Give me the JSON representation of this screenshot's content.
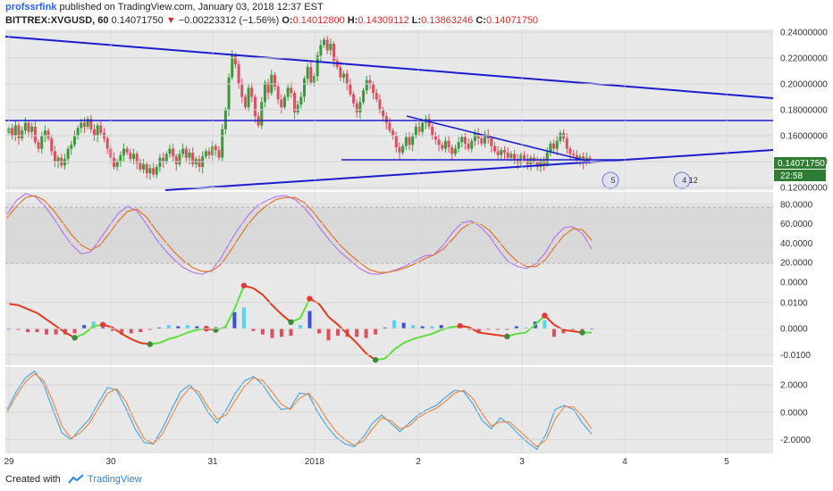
{
  "header": {
    "author": "profssrfink",
    "published_text": "published on TradingView.com, January 03, 2018 12:37 EST",
    "symbol": "BITTREX:XVGUSD, 60",
    "last": "0.14071750",
    "change_arrow": "▼",
    "change": "−0.00223312 (−1.56%)",
    "o_label": "O:",
    "o": "0.14012800",
    "h_label": "H:",
    "h": "0.14309112",
    "l_label": "L:",
    "l": "0.13863246",
    "c_label": "C:",
    "c": "0.14071750"
  },
  "footer": {
    "created_with": "Created with",
    "brand": "TradingView"
  },
  "colors": {
    "up": "#3a9a3a",
    "down": "#d9505f",
    "trendline": "#1c1ccf",
    "panel_bg": "#e8e8e8",
    "stoch_k": "#b577f0",
    "stoch_d": "#e2742a",
    "osc_green": "#5ce03a",
    "osc_red": "#e23a1c",
    "wave_blue": "#4aa8e8",
    "wave_orange": "#ee8a4a"
  },
  "chart_data": [
    {
      "type": "candlestick",
      "panel": "price",
      "x_labels": [
        "29",
        "30",
        "31",
        "2018",
        "2",
        "3",
        "4",
        "5"
      ],
      "y_ticks": [
        "0.24000000",
        "0.22000000",
        "0.20000000",
        "0.18000000",
        "0.16000000",
        "0.14000000",
        "0.12000000"
      ],
      "ylim": [
        0.118,
        0.242
      ],
      "x_range": [
        29,
        5
      ],
      "last_price_label": "0.14071750",
      "countdown_label": "22:58",
      "event_labels": [
        "5",
        "4 12"
      ],
      "closes": [
        0.166,
        0.16,
        0.168,
        0.158,
        0.164,
        0.17,
        0.163,
        0.167,
        0.155,
        0.15,
        0.16,
        0.164,
        0.158,
        0.148,
        0.14,
        0.143,
        0.137,
        0.142,
        0.15,
        0.153,
        0.16,
        0.166,
        0.17,
        0.167,
        0.173,
        0.165,
        0.16,
        0.168,
        0.162,
        0.158,
        0.15,
        0.143,
        0.136,
        0.14,
        0.145,
        0.15,
        0.147,
        0.142,
        0.146,
        0.139,
        0.134,
        0.138,
        0.131,
        0.135,
        0.13,
        0.136,
        0.143,
        0.14,
        0.146,
        0.15,
        0.144,
        0.138,
        0.146,
        0.15,
        0.143,
        0.147,
        0.138,
        0.142,
        0.136,
        0.144,
        0.148,
        0.145,
        0.152,
        0.149,
        0.143,
        0.165,
        0.18,
        0.205,
        0.222,
        0.215,
        0.2,
        0.19,
        0.182,
        0.197,
        0.19,
        0.175,
        0.168,
        0.186,
        0.201,
        0.193,
        0.207,
        0.198,
        0.188,
        0.182,
        0.19,
        0.197,
        0.193,
        0.178,
        0.184,
        0.19,
        0.204,
        0.213,
        0.201,
        0.206,
        0.222,
        0.23,
        0.234,
        0.226,
        0.231,
        0.218,
        0.213,
        0.205,
        0.208,
        0.2,
        0.192,
        0.185,
        0.178,
        0.186,
        0.195,
        0.203,
        0.2,
        0.193,
        0.188,
        0.18,
        0.175,
        0.17,
        0.164,
        0.16,
        0.151,
        0.147,
        0.152,
        0.159,
        0.153,
        0.16,
        0.167,
        0.163,
        0.17,
        0.173,
        0.167,
        0.16,
        0.157,
        0.153,
        0.15,
        0.156,
        0.151,
        0.146,
        0.15,
        0.155,
        0.159,
        0.154,
        0.15,
        0.156,
        0.162,
        0.158,
        0.154,
        0.161,
        0.158,
        0.152,
        0.148,
        0.145,
        0.149,
        0.147,
        0.143,
        0.146,
        0.142,
        0.139,
        0.145,
        0.142,
        0.138,
        0.143,
        0.14,
        0.136,
        0.141,
        0.138,
        0.147,
        0.154,
        0.15,
        0.156,
        0.162,
        0.158,
        0.15,
        0.146,
        0.145,
        0.141,
        0.144,
        0.139,
        0.143,
        0.141
      ]
    },
    {
      "type": "line",
      "panel": "stochastic",
      "y_ticks": [
        "80.0000",
        "60.0000",
        "40.0000",
        "20.0000",
        "0.0000"
      ],
      "ylim": [
        0,
        90
      ],
      "series": [
        {
          "values": [
            70,
            84,
            91,
            88,
            79,
            66,
            51,
            38,
            29,
            31,
            44,
            58,
            71,
            78,
            73,
            60,
            45,
            33,
            23,
            15,
            10,
            8,
            12,
            24,
            41,
            56,
            69,
            79,
            84,
            88,
            89,
            85,
            77,
            65,
            52,
            40,
            30,
            22,
            14,
            9,
            8,
            10,
            13,
            17,
            22,
            27,
            28,
            38,
            51,
            61,
            63,
            57,
            47,
            33,
            21,
            16,
            14,
            19,
            30,
            46,
            56,
            57,
            50,
            34
          ]
        },
        {
          "values": [
            66,
            78,
            87,
            89,
            84,
            74,
            61,
            48,
            38,
            33,
            38,
            50,
            63,
            73,
            75,
            67,
            54,
            42,
            31,
            22,
            15,
            11,
            11,
            18,
            31,
            46,
            60,
            71,
            79,
            85,
            87,
            87,
            82,
            72,
            60,
            48,
            37,
            28,
            20,
            13,
            10,
            10,
            12,
            15,
            19,
            24,
            28,
            34,
            44,
            55,
            61,
            60,
            53,
            42,
            30,
            21,
            16,
            16,
            23,
            36,
            48,
            55,
            54,
            43
          ]
        }
      ]
    },
    {
      "type": "histogram",
      "panel": "oscillator",
      "y_ticks": [
        "0.0100",
        "0.0000",
        "-0.0100"
      ],
      "ylim": [
        -0.014,
        0.0175
      ],
      "series": [
        {
          "values": [
            0.0095,
            0.009,
            0.0075,
            0.006,
            0.0035,
            0.001,
            -0.0015,
            -0.0035,
            -0.002,
            0.001,
            0.0015,
            0.0005,
            -0.002,
            -0.004,
            -0.0055,
            -0.006,
            -0.0055,
            -0.004,
            -0.003,
            -0.0015,
            -0.0005,
            0.0,
            -0.0005,
            0.0005,
            0.0075,
            0.0165,
            0.0155,
            0.013,
            0.009,
            0.0055,
            0.0025,
            0.004,
            0.0115,
            0.0095,
            0.0045,
            0.0015,
            -0.002,
            -0.0055,
            -0.0095,
            -0.012,
            -0.0115,
            -0.008,
            -0.0055,
            -0.004,
            -0.003,
            -0.002,
            -0.0005,
            0.0005,
            0.001,
            0.0005,
            -0.0015,
            -0.002,
            -0.0025,
            -0.003,
            -0.002,
            -0.0015,
            0.0015,
            0.005,
            0.0015,
            -0.0005,
            -0.001,
            -0.0015,
            -0.0015
          ]
        }
      ]
    },
    {
      "type": "line",
      "panel": "wave",
      "y_ticks": [
        "2.0000",
        "0.0000",
        "-2.0000"
      ],
      "ylim": [
        -3.0,
        3.3
      ],
      "series": [
        {
          "values": [
            0.2,
            1.5,
            2.5,
            3.0,
            2.0,
            0.2,
            -1.5,
            -2.0,
            -1.2,
            -0.5,
            0.7,
            1.8,
            1.6,
            0.3,
            -1.2,
            -2.2,
            -2.3,
            -1.2,
            0.2,
            1.5,
            2.0,
            1.2,
            0.0,
            -0.8,
            0.2,
            1.4,
            2.3,
            2.6,
            2.0,
            1.0,
            0.2,
            0.3,
            1.4,
            1.3,
            0.0,
            -1.0,
            -1.8,
            -2.3,
            -2.5,
            -1.8,
            -0.8,
            -0.2,
            -0.8,
            -1.4,
            -0.8,
            -0.2,
            0.2,
            0.5,
            1.1,
            1.6,
            1.5,
            0.6,
            -0.6,
            -1.2,
            -0.4,
            -0.9,
            -1.6,
            -2.2,
            -2.7,
            -1.6,
            0.2,
            0.5,
            0.2,
            -0.8,
            -1.6
          ]
        },
        {
          "values": [
            0.0,
            1.2,
            2.2,
            2.8,
            2.3,
            0.8,
            -1.0,
            -1.9,
            -1.5,
            -0.8,
            0.3,
            1.4,
            1.7,
            0.8,
            -0.7,
            -1.9,
            -2.3,
            -1.6,
            -0.3,
            1.0,
            1.8,
            1.5,
            0.4,
            -0.5,
            -0.2,
            0.9,
            1.9,
            2.5,
            2.3,
            1.5,
            0.6,
            0.2,
            1.0,
            1.4,
            0.6,
            -0.5,
            -1.4,
            -2.0,
            -2.4,
            -2.1,
            -1.2,
            -0.4,
            -0.6,
            -1.2,
            -1.0,
            -0.4,
            0.0,
            0.3,
            0.8,
            1.4,
            1.6,
            1.0,
            -0.1,
            -1.0,
            -0.7,
            -0.7,
            -1.3,
            -1.9,
            -2.5,
            -2.0,
            -0.5,
            0.4,
            0.4,
            -0.3,
            -1.2
          ]
        }
      ]
    }
  ]
}
